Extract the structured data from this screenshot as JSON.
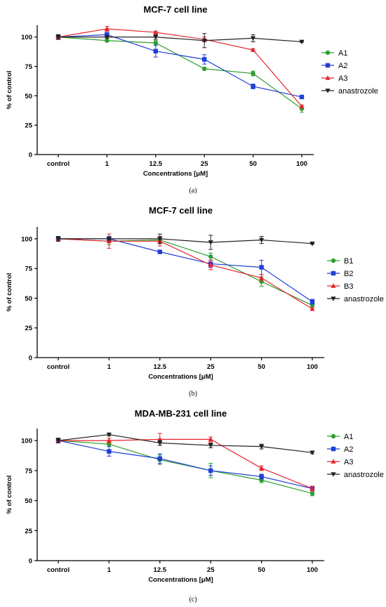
{
  "chart_data": [
    {
      "type": "line",
      "title": "MCF-7 cell line",
      "xlabel": "Concentrations [μM]",
      "ylabel": "% of control",
      "caption": "(a)",
      "categories": [
        "control",
        "1",
        "12.5",
        "25",
        "50",
        "100"
      ],
      "ylim": [
        0,
        110
      ],
      "yticks": [
        0,
        25,
        50,
        75,
        100
      ],
      "legend_position": "right",
      "series": [
        {
          "name": "A1",
          "color": "#2e9e2e",
          "marker": "circle",
          "values": [
            100,
            97,
            95,
            73,
            69,
            39
          ],
          "errors": [
            2,
            1,
            2,
            1,
            2,
            3
          ]
        },
        {
          "name": "A2",
          "color": "#1f3fd6",
          "marker": "square",
          "values": [
            100,
            102,
            88,
            81,
            58,
            49
          ],
          "errors": [
            2,
            2,
            5,
            4,
            2,
            1
          ]
        },
        {
          "name": "A3",
          "color": "#e8232b",
          "marker": "triangle-up",
          "values": [
            100,
            107,
            104,
            98,
            89,
            41
          ],
          "errors": [
            2,
            2,
            1,
            2,
            1,
            1
          ]
        },
        {
          "name": "anastrozole",
          "color": "#222222",
          "marker": "triangle-down",
          "values": [
            100,
            100,
            100,
            97,
            99,
            96
          ],
          "errors": [
            2,
            1,
            2,
            6,
            3,
            0.5
          ]
        }
      ]
    },
    {
      "type": "line",
      "title": "MCF-7 cell line",
      "xlabel": "Concentrations [μM]",
      "ylabel": "% of control",
      "caption": "(b)",
      "categories": [
        "control",
        "1",
        "12.5",
        "25",
        "50",
        "100"
      ],
      "ylim": [
        0,
        110
      ],
      "yticks": [
        0,
        25,
        50,
        75,
        100
      ],
      "legend_position": "right",
      "series": [
        {
          "name": "B1",
          "color": "#2e9e2e",
          "marker": "circle",
          "values": [
            100,
            98,
            99,
            85,
            64,
            44
          ],
          "errors": [
            2,
            3,
            3,
            3,
            4,
            2
          ]
        },
        {
          "name": "B2",
          "color": "#1f3fd6",
          "marker": "square",
          "values": [
            100,
            100,
            89,
            79,
            76,
            47
          ],
          "errors": [
            2,
            2,
            1,
            3,
            6,
            2
          ]
        },
        {
          "name": "B3",
          "color": "#e8232b",
          "marker": "triangle-up",
          "values": [
            100,
            98,
            98,
            78,
            67,
            41
          ],
          "errors": [
            2,
            6,
            4,
            4,
            3,
            1
          ]
        },
        {
          "name": "anastrozole",
          "color": "#222222",
          "marker": "triangle-down",
          "values": [
            100,
            100,
            100,
            97,
            99,
            96
          ],
          "errors": [
            2,
            1,
            4,
            6,
            3,
            0.5
          ]
        }
      ]
    },
    {
      "type": "line",
      "title": "MDA-MB-231 cell line",
      "xlabel": "Concentrations [μM]",
      "ylabel": "% of control",
      "caption": "(c)",
      "categories": [
        "control",
        "1",
        "12.5",
        "25",
        "50",
        "100"
      ],
      "ylim": [
        0,
        110
      ],
      "yticks": [
        0,
        25,
        50,
        75,
        100
      ],
      "legend_position": "right",
      "series": [
        {
          "name": "A1",
          "color": "#2e9e2e",
          "marker": "circle",
          "values": [
            100,
            97,
            84,
            75,
            67,
            56
          ],
          "errors": [
            2,
            2,
            4,
            6,
            2,
            2
          ]
        },
        {
          "name": "A2",
          "color": "#1f3fd6",
          "marker": "square",
          "values": [
            100,
            91,
            85,
            75,
            70,
            60
          ],
          "errors": [
            2,
            4,
            4,
            4,
            2,
            2
          ]
        },
        {
          "name": "A3",
          "color": "#e8232b",
          "marker": "triangle-up",
          "values": [
            100,
            100,
            101,
            101,
            77,
            60
          ],
          "errors": [
            2,
            2,
            5,
            2,
            2,
            2
          ]
        },
        {
          "name": "anastrozole",
          "color": "#222222",
          "marker": "triangle-down",
          "values": [
            100,
            105,
            98,
            96,
            95,
            90
          ],
          "errors": [
            2,
            1,
            2,
            2,
            2,
            1
          ]
        }
      ]
    }
  ]
}
